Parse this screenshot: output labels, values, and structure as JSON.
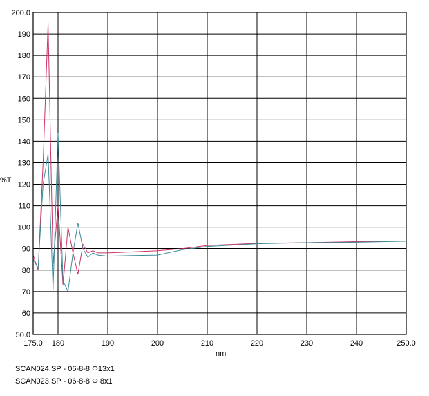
{
  "chart_data": {
    "type": "line",
    "title": "",
    "xlabel": "nm",
    "ylabel": "%T",
    "xlim": [
      175,
      250
    ],
    "ylim": [
      50,
      200
    ],
    "x_ticks": [
      175,
      180,
      190,
      200,
      210,
      220,
      230,
      240,
      250
    ],
    "x_tick_labels": [
      "175.0",
      "180",
      "190",
      "200",
      "210",
      "220",
      "230",
      "240",
      "250.0"
    ],
    "y_ticks": [
      50,
      60,
      70,
      80,
      90,
      100,
      110,
      120,
      130,
      140,
      150,
      160,
      170,
      180,
      190,
      200
    ],
    "y_tick_labels": [
      "50.0",
      "60",
      "70",
      "80",
      "90",
      "100",
      "110",
      "120",
      "130",
      "140",
      "150",
      "160",
      "170",
      "180",
      "190",
      "200.0"
    ],
    "grid": true,
    "series": [
      {
        "color": "#cc3366",
        "x": [
          175,
          176,
          177,
          178,
          179,
          180,
          181,
          182,
          183,
          184,
          185,
          186,
          187,
          188,
          190,
          195,
          200,
          205,
          210,
          220,
          230,
          240,
          250
        ],
        "y": [
          87,
          80,
          130,
          195,
          83,
          110,
          73,
          100,
          88,
          78,
          92,
          88,
          89,
          88,
          88,
          88.5,
          89,
          90,
          91.5,
          92.5,
          92.8,
          93.3,
          93.6
        ]
      },
      {
        "color": "#3b8a9a",
        "x": [
          175,
          176,
          177,
          178,
          179,
          180,
          181,
          182,
          183,
          184,
          185,
          186,
          187,
          188,
          190,
          195,
          200,
          205,
          210,
          220,
          230,
          240,
          250
        ],
        "y": [
          85,
          81,
          120,
          134,
          71,
          144,
          75,
          70,
          88,
          102,
          90,
          86,
          88,
          87,
          86.5,
          86.8,
          87,
          89.5,
          91,
          92.3,
          92.8,
          93,
          93.5
        ]
      }
    ]
  },
  "legend_lines": [
    "SCAN024.SP - 06-8-8 Φ13x1",
    "SCAN023.SP - 06-8-8 Φ 8x1"
  ]
}
